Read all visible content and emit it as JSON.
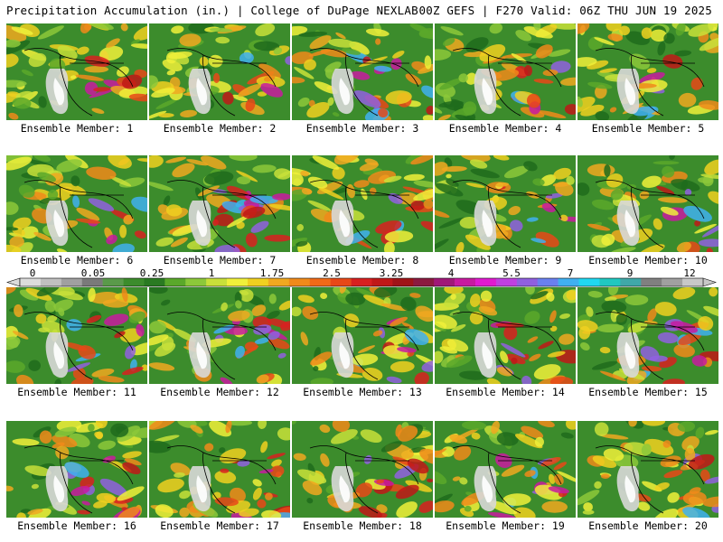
{
  "header": {
    "left": "Precipitation Accumulation (in.) | College of DuPage NEXLAB",
    "right": "00Z GEFS | F270 Valid: 06Z THU JUN 19 2025"
  },
  "panels": [
    {
      "label": "Ensemble Member: 1"
    },
    {
      "label": "Ensemble Member: 2"
    },
    {
      "label": "Ensemble Member: 3"
    },
    {
      "label": "Ensemble Member: 4"
    },
    {
      "label": "Ensemble Member: 5"
    },
    {
      "label": "Ensemble Member: 6"
    },
    {
      "label": "Ensemble Member: 7"
    },
    {
      "label": "Ensemble Member: 8"
    },
    {
      "label": "Ensemble Member: 9"
    },
    {
      "label": "Ensemble Member: 10"
    },
    {
      "label": "Ensemble Member: 11"
    },
    {
      "label": "Ensemble Member: 12"
    },
    {
      "label": "Ensemble Member: 13"
    },
    {
      "label": "Ensemble Member: 14"
    },
    {
      "label": "Ensemble Member: 15"
    },
    {
      "label": "Ensemble Member: 16"
    },
    {
      "label": "Ensemble Member: 17"
    },
    {
      "label": "Ensemble Member: 18"
    },
    {
      "label": "Ensemble Member: 19"
    },
    {
      "label": "Ensemble Member: 20"
    }
  ],
  "colorbar": {
    "labels": [
      "0",
      "0.05",
      "0.25",
      "1",
      "1.75",
      "2.5",
      "3.25",
      "4",
      "5.5",
      "7",
      "9",
      "12"
    ],
    "colors": [
      "#dcdcdc",
      "#c0c0c0",
      "#a0a0a0",
      "#7a7a7a",
      "#5a9a4a",
      "#3c8c2c",
      "#2a7a22",
      "#5aa82a",
      "#8cc83a",
      "#c8e03a",
      "#f0f03a",
      "#f0d020",
      "#f0a820",
      "#f08a1a",
      "#f06a18",
      "#e84818",
      "#d82020",
      "#c01818",
      "#a01418",
      "#8c1a40",
      "#a01878",
      "#c81aa0",
      "#e01ad0",
      "#c040e0",
      "#9060e0",
      "#6a80f0",
      "#40b0f0",
      "#20d8f0",
      "#20c8c0",
      "#40a8a8",
      "#808080",
      "#a0a0a0",
      "#c8c8c8"
    ]
  }
}
